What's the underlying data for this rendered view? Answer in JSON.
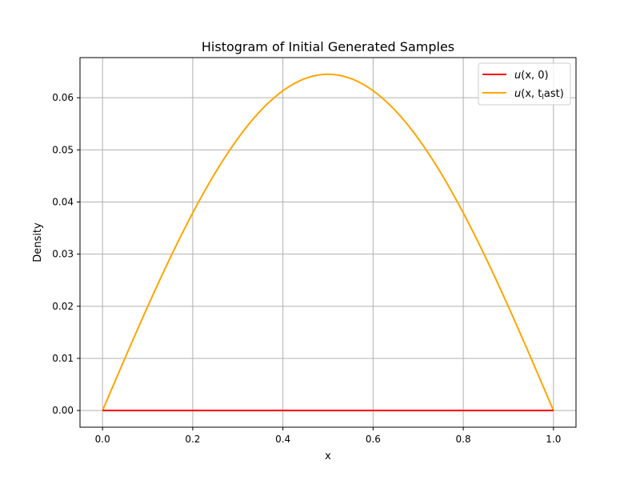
{
  "chart_data": {
    "type": "line",
    "title": "Histogram of Initial Generated Samples",
    "xlabel": "x",
    "ylabel": "Density",
    "xlim": [
      -0.05,
      1.05
    ],
    "ylim": [
      -0.0032,
      0.0677
    ],
    "xticks": [
      0.0,
      0.2,
      0.4,
      0.6,
      0.8,
      1.0
    ],
    "xtick_labels": [
      "0.0",
      "0.2",
      "0.4",
      "0.6",
      "0.8",
      "1.0"
    ],
    "yticks": [
      0.0,
      0.01,
      0.02,
      0.03,
      0.04,
      0.05,
      0.06
    ],
    "ytick_labels": [
      "0.00",
      "0.01",
      "0.02",
      "0.03",
      "0.04",
      "0.05",
      "0.06"
    ],
    "grid": true,
    "legend_position": "top-right",
    "series": [
      {
        "name": "u(x,0)",
        "legend_main": "u",
        "legend_args": "(x, 0)",
        "color": "#ff0000",
        "x": [
          0.0,
          1.0
        ],
        "y": [
          0.0,
          0.0
        ]
      },
      {
        "name": "u(x,t_last)",
        "legend_main": "u",
        "legend_args_pre": "(x, t",
        "legend_sub": "l",
        "legend_args_post": "ast)",
        "color": "#ffa500",
        "x": [
          0.0,
          0.05,
          0.1,
          0.15,
          0.2,
          0.25,
          0.3,
          0.35,
          0.4,
          0.45,
          0.5,
          0.55,
          0.6,
          0.65,
          0.7,
          0.75,
          0.8,
          0.85,
          0.9,
          0.95,
          1.0
        ],
        "y": [
          0.0,
          0.0101,
          0.0199,
          0.0293,
          0.0379,
          0.0456,
          0.0522,
          0.0575,
          0.0613,
          0.0637,
          0.0645,
          0.0637,
          0.0613,
          0.0575,
          0.0522,
          0.0456,
          0.0379,
          0.0293,
          0.0199,
          0.0101,
          0.0
        ]
      }
    ]
  }
}
